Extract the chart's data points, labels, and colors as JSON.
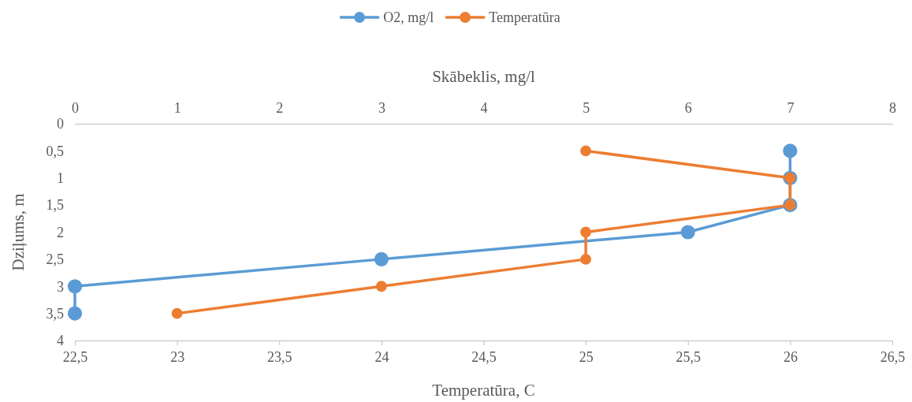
{
  "chart_data": {
    "type": "line",
    "xlabel": "Temperatūra, C",
    "x2label": "Skābeklis, mg/l",
    "ylabel": "Dziļums, m",
    "xlim": [
      22.5,
      26.5
    ],
    "xticks": [
      {
        "value": 22.5,
        "label": "22,5"
      },
      23,
      {
        "value": 23.5,
        "label": "23,5"
      },
      24,
      {
        "value": 24.5,
        "label": "24,5"
      },
      25,
      {
        "value": 25.5,
        "label": "25,5"
      },
      26,
      {
        "value": 26.5,
        "label": "26,5"
      }
    ],
    "x2lim": [
      0,
      8
    ],
    "x2ticks": [
      0,
      1,
      2,
      3,
      4,
      5,
      6,
      7,
      8
    ],
    "ylim": [
      4,
      0
    ],
    "yticks": [
      0,
      {
        "value": 0.5,
        "label": "0,5"
      },
      1,
      {
        "value": 1.5,
        "label": "1,5"
      },
      2,
      {
        "value": 2.5,
        "label": "2,5"
      },
      3,
      {
        "value": 3.5,
        "label": "3,5"
      },
      4
    ],
    "series": [
      {
        "name": "O2, mg/l",
        "color": "#5b9bd5",
        "axis": "x2",
        "x": [
          7,
          7,
          7,
          6,
          3,
          0,
          0
        ],
        "values": [
          0.5,
          1,
          1.5,
          2,
          2.5,
          3,
          3.5
        ]
      },
      {
        "name": "Temperatūra",
        "color": "#ed7d31",
        "x": [
          25,
          26,
          26,
          25,
          25,
          24,
          23
        ],
        "values": [
          0.5,
          1,
          1.5,
          2,
          2.5,
          3,
          3.5
        ]
      }
    ],
    "marker": "circle",
    "line_style": "solid",
    "legend": "top",
    "grid": false
  }
}
